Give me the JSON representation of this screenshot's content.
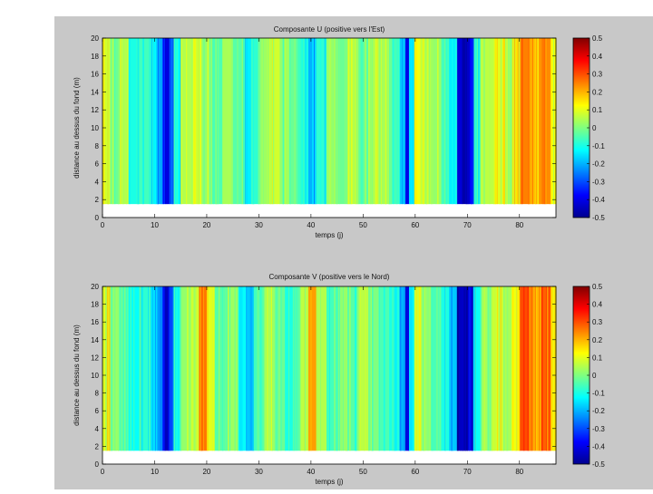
{
  "chart_data": [
    {
      "type": "heatmap",
      "title": "Composante U (positive vers l'Est)",
      "xlabel": "temps (j)",
      "ylabel": "distance au dessus du fond (m)",
      "xlim": [
        0,
        87
      ],
      "ylim": [
        0,
        20
      ],
      "data_y_range": [
        1.5,
        20
      ],
      "xticks": [
        "0",
        "10",
        "20",
        "30",
        "40",
        "50",
        "60",
        "70",
        "80"
      ],
      "yticks": [
        "0",
        "2",
        "4",
        "6",
        "8",
        "10",
        "12",
        "14",
        "16",
        "18",
        "20"
      ],
      "colorbar": {
        "min": -0.5,
        "max": 0.5,
        "ticks": [
          "-0.5",
          "-0.4",
          "-0.3",
          "-0.2",
          "-0.1",
          "0",
          "0.1",
          "0.2",
          "0.3",
          "0.4",
          "0.5"
        ]
      },
      "bands": [
        {
          "x": 0,
          "w": 1.5,
          "v": 0.08
        },
        {
          "x": 1.5,
          "w": 1.5,
          "v": -0.02
        },
        {
          "x": 3,
          "w": 2,
          "v": 0.05
        },
        {
          "x": 5,
          "w": 2,
          "v": -0.1
        },
        {
          "x": 7,
          "w": 2,
          "v": -0.06
        },
        {
          "x": 9,
          "w": 1.5,
          "v": -0.14
        },
        {
          "x": 10.5,
          "w": 1,
          "v": -0.2
        },
        {
          "x": 11.5,
          "w": 0.5,
          "v": -0.32
        },
        {
          "x": 12,
          "w": 0.8,
          "v": -0.42
        },
        {
          "x": 12.8,
          "w": 0.7,
          "v": -0.3
        },
        {
          "x": 13.5,
          "w": 1.5,
          "v": -0.12
        },
        {
          "x": 15,
          "w": 2,
          "v": 0.05
        },
        {
          "x": 17,
          "w": 2,
          "v": 0.1
        },
        {
          "x": 19,
          "w": 1.5,
          "v": 0.02
        },
        {
          "x": 20.5,
          "w": 2.5,
          "v": -0.05
        },
        {
          "x": 23,
          "w": 2,
          "v": 0.04
        },
        {
          "x": 25,
          "w": 2,
          "v": -0.04
        },
        {
          "x": 27,
          "w": 1.5,
          "v": -0.14
        },
        {
          "x": 28.5,
          "w": 1.5,
          "v": -0.08
        },
        {
          "x": 30,
          "w": 2,
          "v": 0.03
        },
        {
          "x": 32,
          "w": 2,
          "v": 0.08
        },
        {
          "x": 34,
          "w": 2,
          "v": 0.02
        },
        {
          "x": 36,
          "w": 2,
          "v": -0.02
        },
        {
          "x": 38,
          "w": 1.5,
          "v": -0.1
        },
        {
          "x": 39.5,
          "w": 1.5,
          "v": -0.2
        },
        {
          "x": 41,
          "w": 2,
          "v": -0.08
        },
        {
          "x": 43,
          "w": 2,
          "v": 0.02
        },
        {
          "x": 45,
          "w": 2,
          "v": -0.02
        },
        {
          "x": 47,
          "w": 2,
          "v": 0.05
        },
        {
          "x": 49,
          "w": 2,
          "v": -0.04
        },
        {
          "x": 51,
          "w": 2,
          "v": 0.06
        },
        {
          "x": 53,
          "w": 2,
          "v": 0.02
        },
        {
          "x": 55,
          "w": 2,
          "v": -0.06
        },
        {
          "x": 57,
          "w": 1,
          "v": -0.18
        },
        {
          "x": 58,
          "w": 0.8,
          "v": -0.4
        },
        {
          "x": 58.8,
          "w": 1,
          "v": -0.15
        },
        {
          "x": 59.8,
          "w": 1.2,
          "v": 0.12
        },
        {
          "x": 61,
          "w": 2,
          "v": 0.05
        },
        {
          "x": 63,
          "w": 2,
          "v": 0.02
        },
        {
          "x": 65,
          "w": 1.5,
          "v": -0.06
        },
        {
          "x": 66.5,
          "w": 1.5,
          "v": -0.14
        },
        {
          "x": 68,
          "w": 1,
          "v": -0.42
        },
        {
          "x": 69,
          "w": 1,
          "v": -0.47
        },
        {
          "x": 70,
          "w": 1,
          "v": -0.38
        },
        {
          "x": 71,
          "w": 1.5,
          "v": -0.1
        },
        {
          "x": 72.5,
          "w": 2.5,
          "v": 0.06
        },
        {
          "x": 75,
          "w": 2,
          "v": 0.1
        },
        {
          "x": 77,
          "w": 1.5,
          "v": 0.05
        },
        {
          "x": 78.5,
          "w": 1.5,
          "v": 0.15
        },
        {
          "x": 80,
          "w": 2,
          "v": 0.25
        },
        {
          "x": 82,
          "w": 2,
          "v": 0.2
        },
        {
          "x": 84,
          "w": 2,
          "v": 0.24
        },
        {
          "x": 86,
          "w": 1,
          "v": 0.12
        }
      ]
    },
    {
      "type": "heatmap",
      "title": "Composante V (positive vers le Nord)",
      "xlabel": "temps (j)",
      "ylabel": "distance au dessus du fond (m)",
      "xlim": [
        0,
        87
      ],
      "ylim": [
        0,
        20
      ],
      "data_y_range": [
        1.5,
        20
      ],
      "xticks": [
        "0",
        "10",
        "20",
        "30",
        "40",
        "50",
        "60",
        "70",
        "80"
      ],
      "yticks": [
        "0",
        "2",
        "4",
        "6",
        "8",
        "10",
        "12",
        "14",
        "16",
        "18",
        "20"
      ],
      "colorbar": {
        "min": -0.5,
        "max": 0.5,
        "ticks": [
          "-0.5",
          "-0.4",
          "-0.3",
          "-0.2",
          "-0.1",
          "0",
          "0.1",
          "0.2",
          "0.3",
          "0.4",
          "0.5"
        ]
      },
      "bands": [
        {
          "x": 0,
          "w": 1.5,
          "v": 0.1
        },
        {
          "x": 1.5,
          "w": 1.5,
          "v": 0.02
        },
        {
          "x": 3,
          "w": 2,
          "v": -0.04
        },
        {
          "x": 5,
          "w": 2,
          "v": -0.12
        },
        {
          "x": 7,
          "w": 2,
          "v": -0.08
        },
        {
          "x": 9,
          "w": 1.5,
          "v": -0.15
        },
        {
          "x": 10.5,
          "w": 1,
          "v": -0.22
        },
        {
          "x": 11.5,
          "w": 0.5,
          "v": -0.35
        },
        {
          "x": 12,
          "w": 0.8,
          "v": -0.45
        },
        {
          "x": 12.8,
          "w": 0.7,
          "v": -0.3
        },
        {
          "x": 13.5,
          "w": 1.5,
          "v": -0.1
        },
        {
          "x": 15,
          "w": 2,
          "v": 0.02
        },
        {
          "x": 17,
          "w": 1.5,
          "v": 0.08
        },
        {
          "x": 18.5,
          "w": 1.5,
          "v": 0.26
        },
        {
          "x": 20,
          "w": 1.5,
          "v": 0.1
        },
        {
          "x": 21.5,
          "w": 2.5,
          "v": -0.04
        },
        {
          "x": 24,
          "w": 2,
          "v": 0.03
        },
        {
          "x": 26,
          "w": 1.5,
          "v": -0.12
        },
        {
          "x": 27.5,
          "w": 1.5,
          "v": -0.2
        },
        {
          "x": 29,
          "w": 2,
          "v": -0.06
        },
        {
          "x": 31,
          "w": 2,
          "v": 0.04
        },
        {
          "x": 33,
          "w": 2,
          "v": -0.02
        },
        {
          "x": 35,
          "w": 1.5,
          "v": -0.1
        },
        {
          "x": 36.5,
          "w": 1.5,
          "v": -0.04
        },
        {
          "x": 38,
          "w": 1.5,
          "v": 0.06
        },
        {
          "x": 39.5,
          "w": 1.5,
          "v": 0.22
        },
        {
          "x": 41,
          "w": 2,
          "v": 0.05
        },
        {
          "x": 43,
          "w": 2,
          "v": -0.06
        },
        {
          "x": 45,
          "w": 2,
          "v": 0.02
        },
        {
          "x": 47,
          "w": 2,
          "v": -0.04
        },
        {
          "x": 49,
          "w": 2,
          "v": 0.06
        },
        {
          "x": 51,
          "w": 2,
          "v": 0.0
        },
        {
          "x": 53,
          "w": 2,
          "v": -0.05
        },
        {
          "x": 55,
          "w": 2,
          "v": -0.1
        },
        {
          "x": 57,
          "w": 1,
          "v": -0.2
        },
        {
          "x": 58,
          "w": 0.8,
          "v": -0.42
        },
        {
          "x": 58.8,
          "w": 1,
          "v": -0.15
        },
        {
          "x": 59.8,
          "w": 1.2,
          "v": 0.08
        },
        {
          "x": 61,
          "w": 2,
          "v": 0.02
        },
        {
          "x": 63,
          "w": 2,
          "v": -0.05
        },
        {
          "x": 65,
          "w": 1.5,
          "v": -0.1
        },
        {
          "x": 66.5,
          "w": 1.5,
          "v": -0.18
        },
        {
          "x": 68,
          "w": 1,
          "v": -0.45
        },
        {
          "x": 69,
          "w": 1,
          "v": -0.48
        },
        {
          "x": 70,
          "w": 1,
          "v": -0.4
        },
        {
          "x": 71,
          "w": 1.5,
          "v": -0.12
        },
        {
          "x": 72.5,
          "w": 2.5,
          "v": 0.04
        },
        {
          "x": 75,
          "w": 2,
          "v": 0.08
        },
        {
          "x": 77,
          "w": 1.5,
          "v": 0.04
        },
        {
          "x": 78.5,
          "w": 1.5,
          "v": 0.12
        },
        {
          "x": 80,
          "w": 2,
          "v": 0.3
        },
        {
          "x": 82,
          "w": 2,
          "v": 0.22
        },
        {
          "x": 84,
          "w": 2,
          "v": 0.28
        },
        {
          "x": 86,
          "w": 1,
          "v": 0.15
        }
      ]
    }
  ]
}
